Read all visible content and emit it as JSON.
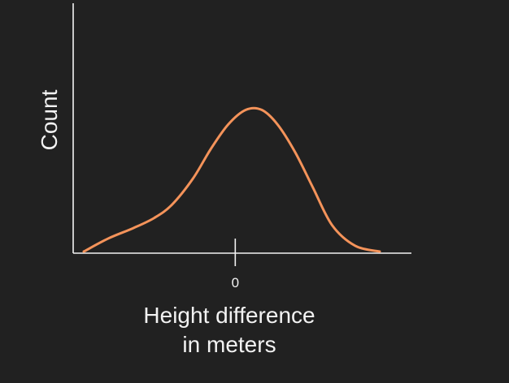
{
  "chart_data": {
    "type": "line",
    "title": "",
    "xlabel": [
      "Height difference",
      "in meters"
    ],
    "ylabel": "Count",
    "x_ticks": [
      {
        "value": 0,
        "label": "0"
      }
    ],
    "xlim": [
      -4.6,
      5.0
    ],
    "ylim": [
      0,
      1.0
    ],
    "grid": false,
    "legend": "none",
    "series": [
      {
        "color": "#f4935a",
        "x": [
          -4.3,
          -3.6,
          -2.9,
          -2.3,
          -1.8,
          -1.2,
          -0.7,
          -0.2,
          0.3,
          0.75,
          1.2,
          1.7,
          2.2,
          2.75,
          3.4,
          4.1
        ],
        "y": [
          0.0,
          0.09,
          0.16,
          0.23,
          0.32,
          0.5,
          0.7,
          0.87,
          0.97,
          0.97,
          0.87,
          0.68,
          0.44,
          0.18,
          0.04,
          0.0
        ]
      }
    ]
  }
}
